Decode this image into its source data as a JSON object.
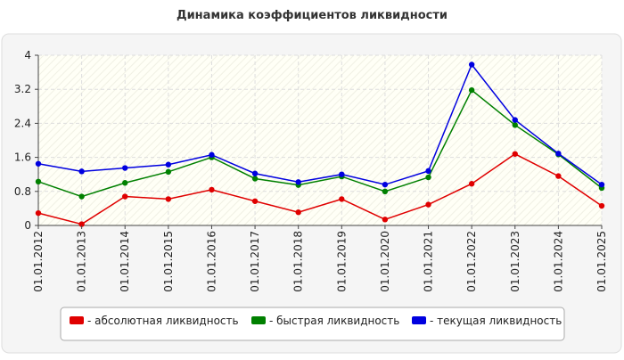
{
  "chart_data": {
    "type": "line",
    "title": "Динамика коэффициентов ликвидности",
    "categories": [
      "01.01.2012",
      "01.01.2013",
      "01.01.2014",
      "01.01.2015",
      "01.01.2016",
      "01.01.2017",
      "01.01.2018",
      "01.01.2019",
      "01.01.2020",
      "01.01.2021",
      "01.01.2022",
      "01.01.2023",
      "01.01.2024",
      "01.01.2025"
    ],
    "series": [
      {
        "name": "- абсолютная ликвидность",
        "color": "#e00000",
        "values": [
          0.29,
          0.03,
          0.68,
          0.62,
          0.84,
          0.57,
          0.31,
          0.62,
          0.14,
          0.49,
          0.98,
          1.68,
          1.16,
          0.46
        ]
      },
      {
        "name": "- быстрая ликвидность",
        "color": "#008000",
        "values": [
          1.03,
          0.68,
          1.0,
          1.26,
          1.6,
          1.1,
          0.95,
          1.15,
          0.8,
          1.13,
          3.18,
          2.36,
          1.67,
          0.88
        ]
      },
      {
        "name": "- текущая ликвидность",
        "color": "#0000e0",
        "values": [
          1.45,
          1.27,
          1.35,
          1.43,
          1.66,
          1.22,
          1.02,
          1.2,
          0.96,
          1.28,
          3.78,
          2.48,
          1.69,
          0.96
        ]
      }
    ],
    "ylim": [
      0,
      4
    ],
    "yticks": [
      0,
      0.8,
      1.6,
      2.4,
      3.2,
      4
    ],
    "grid": true
  }
}
